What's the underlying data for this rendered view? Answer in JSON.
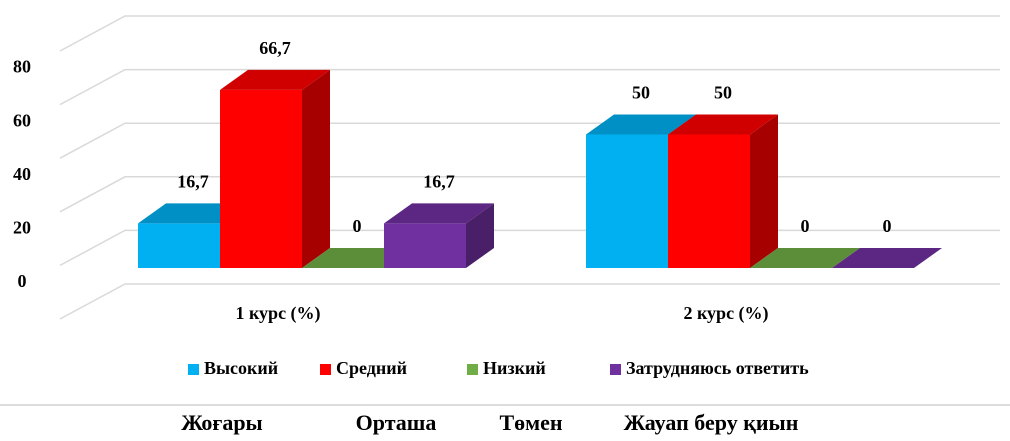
{
  "chart_data": {
    "type": "bar3d",
    "categories": [
      "1 курс (%)",
      "2 курс (%)"
    ],
    "series": [
      {
        "name": "Высокий",
        "color": "#00b0f0",
        "values": [
          16.7,
          50
        ],
        "value_labels": [
          "16,7",
          "50"
        ]
      },
      {
        "name": "Средний",
        "color": "#ff0000",
        "values": [
          66.7,
          50
        ],
        "value_labels": [
          "66,7",
          "50"
        ]
      },
      {
        "name": "Низкий",
        "color": "#70ad47",
        "values": [
          0,
          0
        ],
        "value_labels": [
          "0",
          "0"
        ]
      },
      {
        "name": "Затрудняюсь ответить",
        "color": "#7030a0",
        "values": [
          16.7,
          0
        ],
        "value_labels": [
          "16,7",
          "0"
        ]
      }
    ],
    "ylim": [
      0,
      100
    ],
    "yticks": [
      0,
      20,
      40,
      60,
      80
    ],
    "grid": true,
    "legend": "bottom"
  },
  "footer_labels": [
    "Жоғары",
    "Орташа",
    "Төмен",
    "Жауап беру қиын"
  ]
}
